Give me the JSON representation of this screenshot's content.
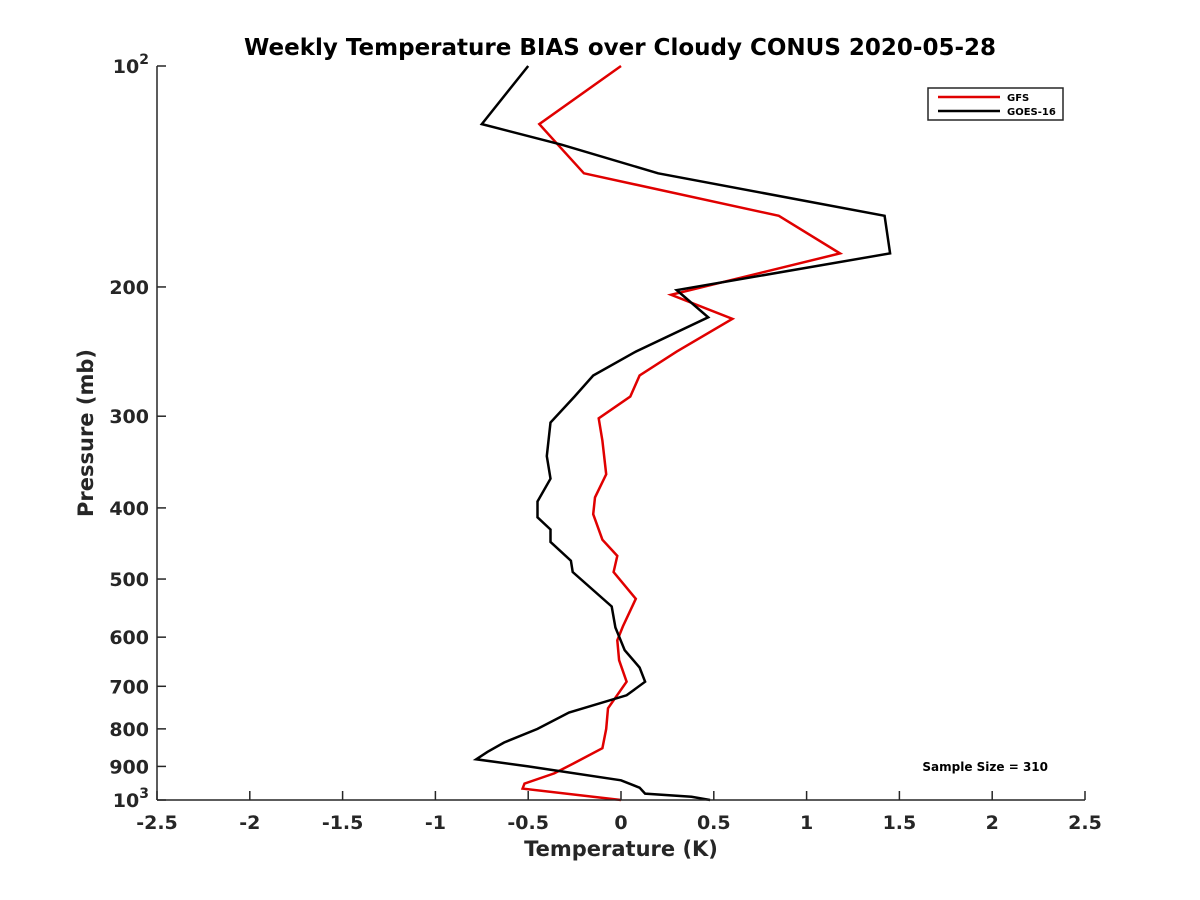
{
  "chart_data": {
    "type": "line",
    "title": "Weekly Temperature BIAS over Cloudy CONUS 2020-05-28",
    "xlabel": "Temperature (K)",
    "ylabel": "Pressure (mb)",
    "xlim": [
      -2.5,
      2.5
    ],
    "ylim": [
      1000,
      100
    ],
    "yscale": "log",
    "y_reversed": true,
    "grid": false,
    "legend_position": "top-right",
    "x_ticks": [
      {
        "value": -2.5,
        "label": "-2.5"
      },
      {
        "value": -2,
        "label": "-2"
      },
      {
        "value": -1.5,
        "label": "-1.5"
      },
      {
        "value": -1,
        "label": "-1"
      },
      {
        "value": -0.5,
        "label": "-0.5"
      },
      {
        "value": 0,
        "label": "0"
      },
      {
        "value": 0.5,
        "label": "0.5"
      },
      {
        "value": 1,
        "label": "1"
      },
      {
        "value": 1.5,
        "label": "1.5"
      },
      {
        "value": 2,
        "label": "2"
      },
      {
        "value": 2.5,
        "label": "2.5"
      }
    ],
    "y_ticks": [
      {
        "value": 100,
        "label": "10",
        "sup": "2"
      },
      {
        "value": 200,
        "label": "200"
      },
      {
        "value": 300,
        "label": "300"
      },
      {
        "value": 400,
        "label": "400"
      },
      {
        "value": 500,
        "label": "500"
      },
      {
        "value": 600,
        "label": "600"
      },
      {
        "value": 700,
        "label": "700"
      },
      {
        "value": 800,
        "label": "800"
      },
      {
        "value": 900,
        "label": "900"
      },
      {
        "value": 1000,
        "label": "10",
        "sup": "3"
      }
    ],
    "series": [
      {
        "name": "GFS",
        "color": "#e00000",
        "points": [
          [
            0.0,
            100
          ],
          [
            -0.44,
            120
          ],
          [
            -0.34,
            128
          ],
          [
            -0.2,
            140
          ],
          [
            0.85,
            160
          ],
          [
            1.18,
            180
          ],
          [
            0.27,
            205
          ],
          [
            0.6,
            221
          ],
          [
            0.3,
            245
          ],
          [
            0.1,
            264
          ],
          [
            0.05,
            282
          ],
          [
            -0.12,
            302
          ],
          [
            -0.1,
            324
          ],
          [
            -0.08,
            360
          ],
          [
            -0.14,
            387
          ],
          [
            -0.15,
            408
          ],
          [
            -0.1,
            442
          ],
          [
            -0.02,
            465
          ],
          [
            -0.04,
            489
          ],
          [
            0.08,
            532
          ],
          [
            0.01,
            580
          ],
          [
            -0.02,
            606
          ],
          [
            -0.01,
            645
          ],
          [
            0.03,
            690
          ],
          [
            -0.07,
            750
          ],
          [
            -0.08,
            800
          ],
          [
            -0.1,
            850
          ],
          [
            -0.25,
            890
          ],
          [
            -0.36,
            920
          ],
          [
            -0.52,
            950
          ],
          [
            -0.53,
            965
          ],
          [
            0.0,
            1000
          ]
        ]
      },
      {
        "name": "GOES-16",
        "color": "#000000",
        "points": [
          [
            -0.5,
            100
          ],
          [
            -0.75,
            120
          ],
          [
            -0.32,
            128
          ],
          [
            0.2,
            140
          ],
          [
            1.42,
            160
          ],
          [
            1.45,
            180
          ],
          [
            0.3,
            202
          ],
          [
            0.47,
            220
          ],
          [
            0.08,
            245
          ],
          [
            -0.15,
            264
          ],
          [
            -0.25,
            282
          ],
          [
            -0.38,
            306
          ],
          [
            -0.4,
            340
          ],
          [
            -0.38,
            365
          ],
          [
            -0.45,
            392
          ],
          [
            -0.45,
            412
          ],
          [
            -0.38,
            428
          ],
          [
            -0.38,
            445
          ],
          [
            -0.27,
            472
          ],
          [
            -0.26,
            489
          ],
          [
            -0.05,
            545
          ],
          [
            -0.03,
            582
          ],
          [
            0.02,
            625
          ],
          [
            0.1,
            660
          ],
          [
            0.13,
            690
          ],
          [
            0.03,
            720
          ],
          [
            -0.28,
            760
          ],
          [
            -0.45,
            800
          ],
          [
            -0.63,
            835
          ],
          [
            -0.72,
            860
          ],
          [
            -0.78,
            880
          ],
          [
            -0.5,
            900
          ],
          [
            0.0,
            940
          ],
          [
            0.1,
            962
          ],
          [
            0.13,
            980
          ],
          [
            0.38,
            990
          ],
          [
            0.48,
            1000
          ]
        ]
      }
    ],
    "annotation": "Sample Size = 310"
  }
}
